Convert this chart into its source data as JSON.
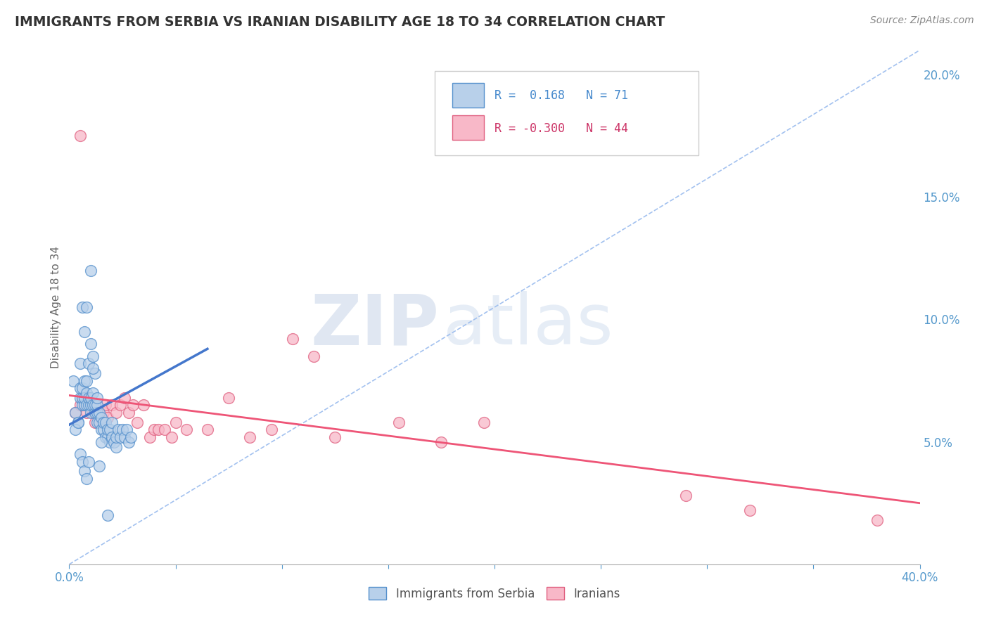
{
  "title": "IMMIGRANTS FROM SERBIA VS IRANIAN DISABILITY AGE 18 TO 34 CORRELATION CHART",
  "source": "Source: ZipAtlas.com",
  "ylabel_label": "Disability Age 18 to 34",
  "legend_label1": "Immigrants from Serbia",
  "legend_label2": "Iranians",
  "r1": 0.168,
  "n1": 71,
  "r2": -0.3,
  "n2": 44,
  "color_blue_fill": "#b8d0ea",
  "color_blue_edge": "#5590cc",
  "color_pink_fill": "#f8b8c8",
  "color_pink_edge": "#e06080",
  "color_blue_line": "#4477cc",
  "color_pink_line": "#ee5577",
  "color_dashed": "#99bbee",
  "color_title": "#333333",
  "color_watermark": "#ccd5e8",
  "watermark_zip": "ZIP",
  "watermark_atlas": "atlas",
  "background_color": "#ffffff",
  "xmin": 0.0,
  "xmax": 0.4,
  "ymin": 0.0,
  "ymax": 0.21,
  "blue_scatter_x": [
    0.002,
    0.003,
    0.004,
    0.005,
    0.005,
    0.006,
    0.006,
    0.006,
    0.007,
    0.007,
    0.007,
    0.008,
    0.008,
    0.008,
    0.009,
    0.009,
    0.01,
    0.01,
    0.01,
    0.011,
    0.011,
    0.012,
    0.012,
    0.013,
    0.013,
    0.013,
    0.014,
    0.014,
    0.015,
    0.015,
    0.016,
    0.016,
    0.017,
    0.017,
    0.018,
    0.018,
    0.019,
    0.019,
    0.02,
    0.02,
    0.021,
    0.022,
    0.022,
    0.023,
    0.024,
    0.025,
    0.026,
    0.027,
    0.028,
    0.029,
    0.003,
    0.004,
    0.005,
    0.006,
    0.007,
    0.008,
    0.009,
    0.01,
    0.011,
    0.012,
    0.005,
    0.006,
    0.007,
    0.008,
    0.009,
    0.01,
    0.011,
    0.013,
    0.014,
    0.015,
    0.018
  ],
  "blue_scatter_y": [
    0.075,
    0.062,
    0.058,
    0.068,
    0.072,
    0.065,
    0.068,
    0.072,
    0.065,
    0.068,
    0.075,
    0.065,
    0.07,
    0.075,
    0.065,
    0.068,
    0.062,
    0.065,
    0.068,
    0.065,
    0.07,
    0.062,
    0.065,
    0.058,
    0.062,
    0.065,
    0.058,
    0.062,
    0.055,
    0.06,
    0.055,
    0.058,
    0.052,
    0.058,
    0.052,
    0.055,
    0.05,
    0.055,
    0.052,
    0.058,
    0.05,
    0.048,
    0.052,
    0.055,
    0.052,
    0.055,
    0.052,
    0.055,
    0.05,
    0.052,
    0.055,
    0.058,
    0.082,
    0.105,
    0.095,
    0.105,
    0.082,
    0.09,
    0.085,
    0.078,
    0.045,
    0.042,
    0.038,
    0.035,
    0.042,
    0.12,
    0.08,
    0.068,
    0.04,
    0.05,
    0.02
  ],
  "pink_scatter_x": [
    0.003,
    0.005,
    0.006,
    0.007,
    0.008,
    0.009,
    0.01,
    0.011,
    0.012,
    0.013,
    0.014,
    0.015,
    0.016,
    0.017,
    0.018,
    0.02,
    0.022,
    0.024,
    0.026,
    0.028,
    0.03,
    0.032,
    0.035,
    0.038,
    0.04,
    0.042,
    0.045,
    0.048,
    0.05,
    0.055,
    0.065,
    0.075,
    0.085,
    0.095,
    0.105,
    0.115,
    0.125,
    0.155,
    0.175,
    0.195,
    0.29,
    0.32,
    0.38,
    0.005
  ],
  "pink_scatter_y": [
    0.062,
    0.065,
    0.068,
    0.065,
    0.062,
    0.065,
    0.065,
    0.062,
    0.058,
    0.065,
    0.062,
    0.058,
    0.062,
    0.065,
    0.06,
    0.065,
    0.062,
    0.065,
    0.068,
    0.062,
    0.065,
    0.058,
    0.065,
    0.052,
    0.055,
    0.055,
    0.055,
    0.052,
    0.058,
    0.055,
    0.055,
    0.068,
    0.052,
    0.055,
    0.092,
    0.085,
    0.052,
    0.058,
    0.05,
    0.058,
    0.028,
    0.022,
    0.018,
    0.175
  ],
  "blue_line_x0": 0.0,
  "blue_line_x1": 0.065,
  "blue_line_y0": 0.057,
  "blue_line_y1": 0.088,
  "pink_line_x0": 0.0,
  "pink_line_x1": 0.4,
  "pink_line_y0": 0.069,
  "pink_line_y1": 0.025
}
